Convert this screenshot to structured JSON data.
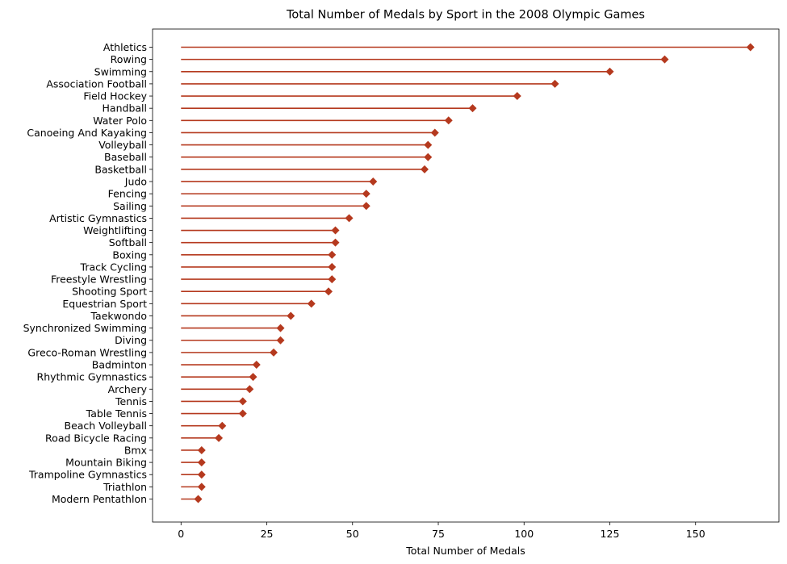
{
  "chart_data": {
    "type": "lollipop",
    "orientation": "horizontal",
    "title": "Total Number of Medals by Sport in the 2008 Olympic Games",
    "xlabel": "Total Number of Medals",
    "ylabel": "",
    "xlim": [
      -8.3,
      174.3
    ],
    "xticks": [
      0,
      25,
      50,
      75,
      100,
      125,
      150
    ],
    "grid": false,
    "legend": "none",
    "color": "#b5391e",
    "marker": "diamond",
    "categories": [
      "Athletics",
      "Rowing",
      "Swimming",
      "Association Football",
      "Field Hockey",
      "Handball",
      "Water Polo",
      "Canoeing And Kayaking",
      "Volleyball",
      "Baseball",
      "Basketball",
      "Judo",
      "Fencing",
      "Sailing",
      "Artistic Gymnastics",
      "Weightlifting",
      "Softball",
      "Boxing",
      "Track Cycling",
      "Freestyle Wrestling",
      "Shooting Sport",
      "Equestrian Sport",
      "Taekwondo",
      "Synchronized Swimming",
      "Diving",
      "Greco-Roman Wrestling",
      "Badminton",
      "Rhythmic Gymnastics",
      "Archery",
      "Tennis",
      "Table Tennis",
      "Beach Volleyball",
      "Road Bicycle Racing",
      "Bmx",
      "Mountain Biking",
      "Trampoline Gymnastics",
      "Triathlon",
      "Modern Pentathlon"
    ],
    "values": [
      166,
      141,
      125,
      109,
      98,
      85,
      78,
      74,
      72,
      72,
      71,
      56,
      54,
      54,
      49,
      45,
      45,
      44,
      44,
      44,
      43,
      38,
      32,
      29,
      29,
      27,
      22,
      21,
      20,
      18,
      18,
      12,
      11,
      6,
      6,
      6,
      6,
      5
    ]
  }
}
